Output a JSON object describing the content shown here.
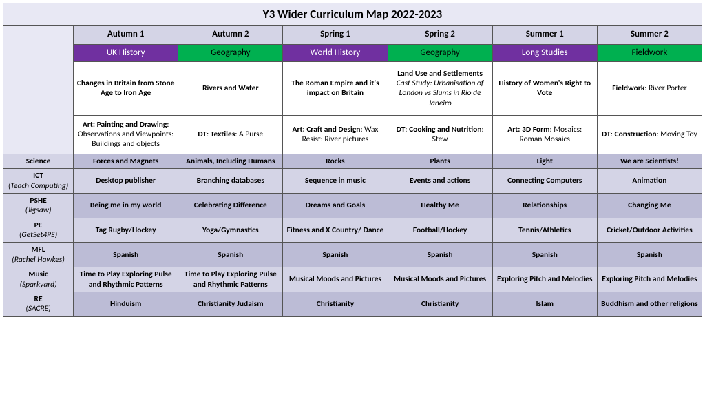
{
  "title": "Y3 Wider Curriculum Map 2022-2023",
  "terms": [
    "Autumn 1",
    "Autumn 2",
    "Spring 1",
    "Spring 2",
    "Summer 1",
    "Summer 2"
  ],
  "subjects": [
    {
      "label": "UK History",
      "style": "purple"
    },
    {
      "label": "Geography",
      "style": "green"
    },
    {
      "label": "World History",
      "style": "purple"
    },
    {
      "label": "Geography",
      "style": "green"
    },
    {
      "label": "Long Studies",
      "style": "purple"
    },
    {
      "label": "Fieldwork",
      "style": "green"
    }
  ],
  "topics": [
    {
      "main": "Changes in Britain from Stone Age to Iron Age"
    },
    {
      "main": "Rivers and Water"
    },
    {
      "main": "The Roman Empire and it's impact on Britain"
    },
    {
      "main": "Land Use and Settlements",
      "sub": "Cast Study: Urbanisation of London vs Slums in Rio de Janeiro"
    },
    {
      "main": "History of Women's Right to Vote"
    },
    {
      "lead": "Fieldwork",
      "plain": ": River Porter"
    }
  ],
  "art": [
    {
      "lead": "Art: Painting and Drawing",
      "rest": ": Observations and Viewpoints: Buildings and objects"
    },
    {
      "lead": "DT",
      "rest": ": ",
      "lead2": "Textiles",
      "rest2": ": A Purse"
    },
    {
      "lead": "Art: Craft and Design",
      "rest": ": Wax Resist: River pictures"
    },
    {
      "lead": "DT",
      "rest": ": ",
      "lead2": "Cooking and Nutrition",
      "rest2": ": Stew"
    },
    {
      "lead": "Art: 3D Form",
      "rest": ": Mosaics: Roman Mosaics"
    },
    {
      "lead": "DT",
      "rest": ": ",
      "lead2": "Construction",
      "rest2": ": Moving Toy"
    }
  ],
  "rows": [
    {
      "label": "Science",
      "sub": "",
      "shade": "dark",
      "cells": [
        "Forces and Magnets",
        "Animals, Including Humans",
        "Rocks",
        "Plants",
        "Light",
        "We are Scientists!"
      ]
    },
    {
      "label": "ICT",
      "sub": "(Teach Computing)",
      "shade": "light",
      "cells": [
        "Desktop publisher",
        "Branching databases",
        "Sequence in music",
        "Events and actions",
        "Connecting Computers",
        "Animation"
      ]
    },
    {
      "label": "PSHE",
      "sub": "(Jigsaw)",
      "shade": "dark",
      "cells": [
        "Being me in my world",
        "Celebrating Difference",
        "Dreams and Goals",
        "Healthy Me",
        "Relationships",
        "Changing Me"
      ]
    },
    {
      "label": "PE",
      "sub": "(GetSet4PE)",
      "shade": "light",
      "cells": [
        "Tag Rugby/Hockey",
        "Yoga/Gymnastics",
        "Fitness and X Country/ Dance",
        "Football/Hockey",
        "Tennis/Athletics",
        "Cricket/Outdoor Activities"
      ]
    },
    {
      "label": "MFL",
      "sub": "(Rachel Hawkes)",
      "shade": "dark",
      "cells": [
        "Spanish",
        "Spanish",
        "Spanish",
        "Spanish",
        "Spanish",
        "Spanish"
      ]
    },
    {
      "label": "Music",
      "sub": "(Sparkyard)",
      "shade": "light",
      "cells": [
        "Time to Play Exploring Pulse and Rhythmic Patterns",
        "Time to Play Exploring Pulse and Rhythmic Patterns",
        "Musical Moods and Pictures",
        "Musical Moods and Pictures",
        "Exploring Pitch and Melodies",
        "Exploring Pitch and Melodies"
      ]
    },
    {
      "label": "RE",
      "sub": "(SACRE)",
      "shade": "dark",
      "cells": [
        "Hinduism",
        "Christianity Judaism",
        "Christianity",
        "Christianity",
        "Islam",
        "Buddhism and other religions"
      ]
    }
  ],
  "colors": {
    "purple": "#7030a0",
    "green": "#00b050",
    "header_bg": "#d4d4e6",
    "title_bg": "#e8e8f4",
    "row_dark": "#bcbcd6",
    "row_light": "#d4d4e6",
    "border": "#555555"
  }
}
